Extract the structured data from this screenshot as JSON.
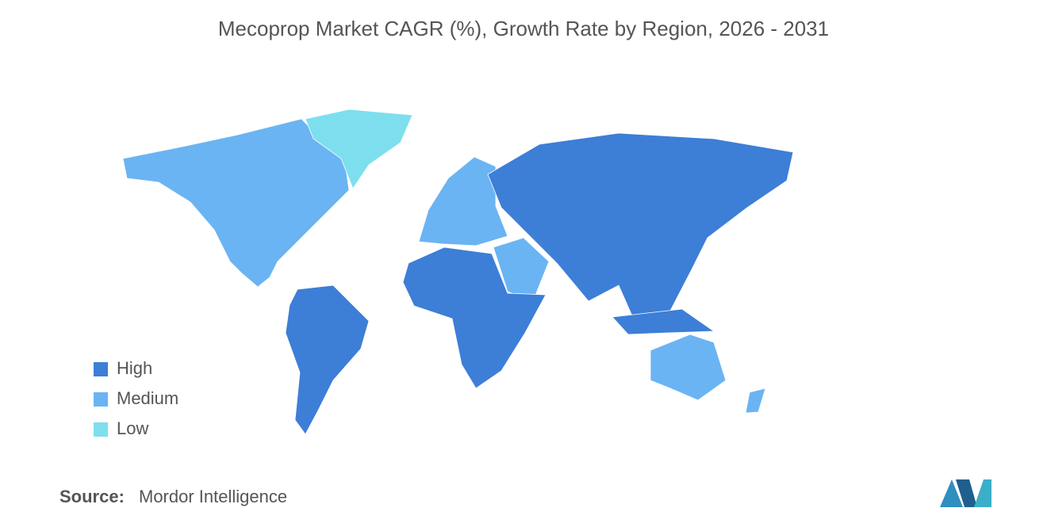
{
  "chart_data": {
    "type": "choropleth",
    "title": "Mecoprop Market CAGR (%), Growth Rate by Region, 2026 - 2031",
    "legend": [
      {
        "name": "High",
        "color": "#3d7ed7"
      },
      {
        "name": "Medium",
        "color": "#6ab4f3"
      },
      {
        "name": "Low",
        "color": "#7ddfee"
      }
    ],
    "source_label": "Source:",
    "source": "Mordor Intelligence"
  }
}
